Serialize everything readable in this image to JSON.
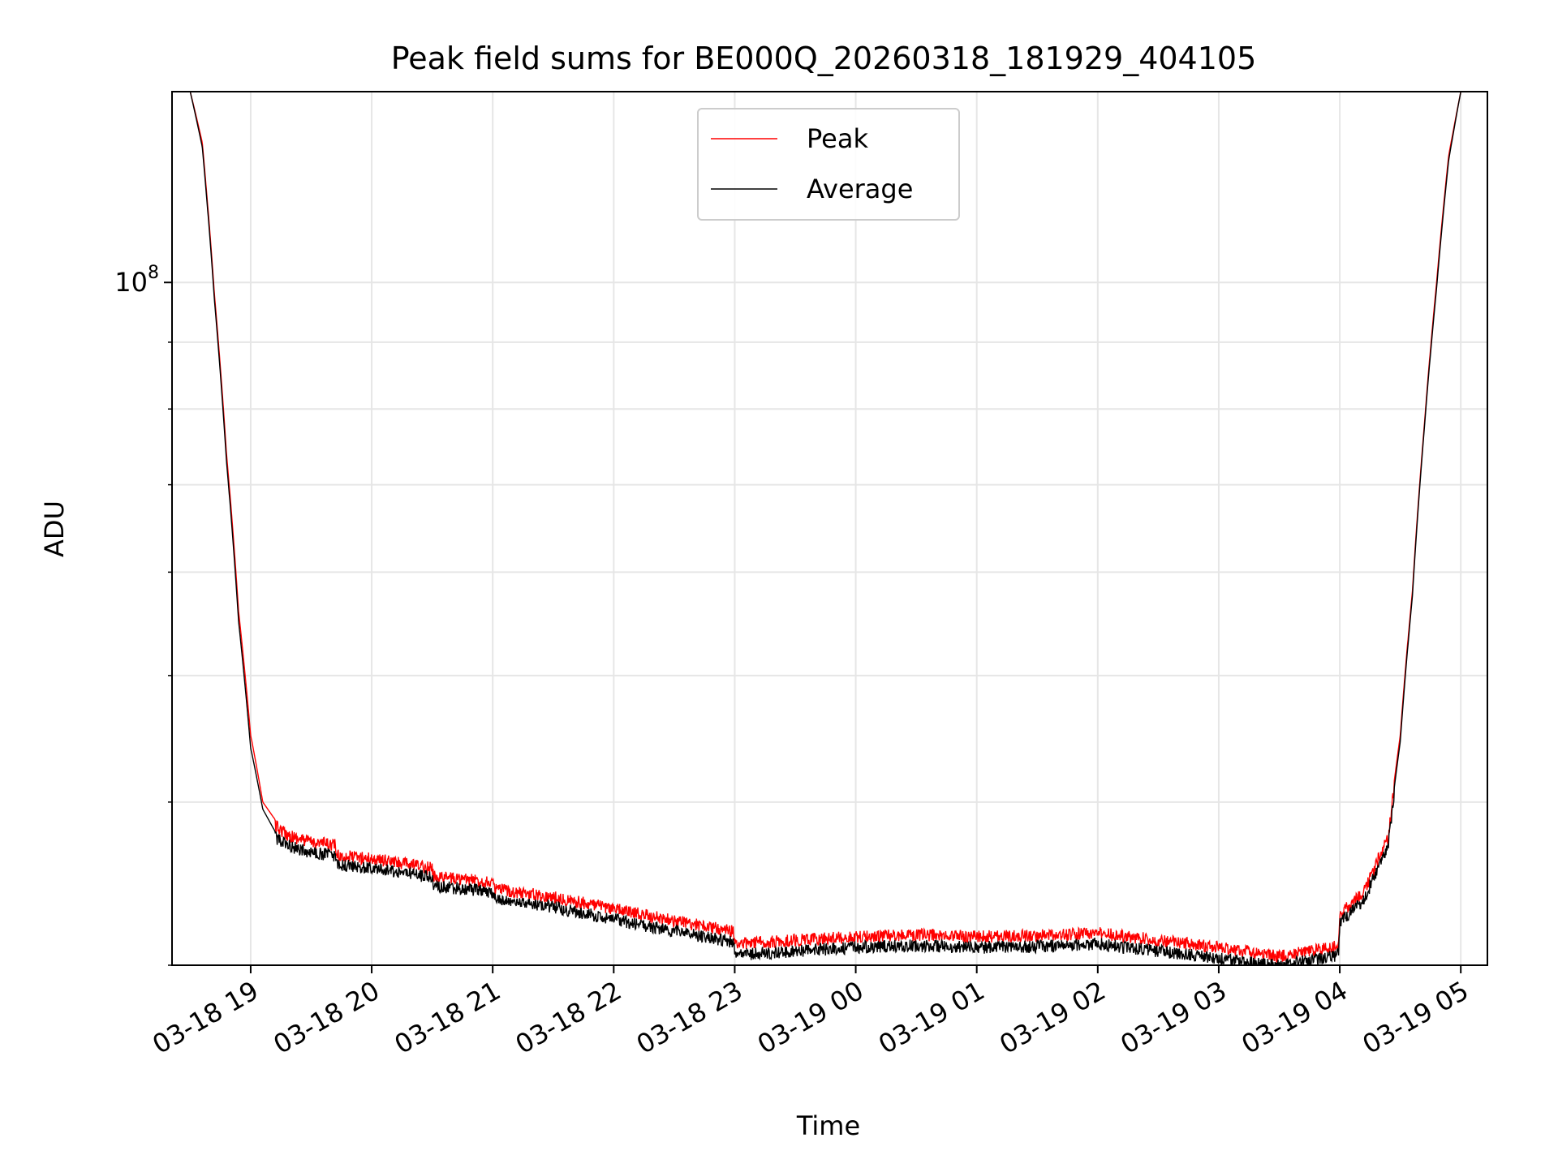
{
  "chart_data": {
    "type": "line",
    "title": "Peak field sums for BE000Q_20260318_181929_404105",
    "xlabel": "Time",
    "ylabel": "ADU",
    "yscale": "log",
    "ylim": [
      30000000,
      140000000
    ],
    "xlim_hours": [
      18.35,
      29.22
    ],
    "grid": true,
    "legend_position": "upper center",
    "y_major_ticks": [
      {
        "value": 100000000,
        "base": "10",
        "exp": "8"
      }
    ],
    "y_minor_ticks": [
      30000000,
      40000000,
      50000000,
      60000000,
      70000000,
      80000000,
      90000000
    ],
    "x_ticks": [
      {
        "hour": 19,
        "label": "03-18 19"
      },
      {
        "hour": 20,
        "label": "03-18 20"
      },
      {
        "hour": 21,
        "label": "03-18 21"
      },
      {
        "hour": 22,
        "label": "03-18 22"
      },
      {
        "hour": 23,
        "label": "03-18 23"
      },
      {
        "hour": 24,
        "label": "03-19 00"
      },
      {
        "hour": 25,
        "label": "03-19 01"
      },
      {
        "hour": 26,
        "label": "03-19 02"
      },
      {
        "hour": 27,
        "label": "03-19 03"
      },
      {
        "hour": 28,
        "label": "03-19 04"
      },
      {
        "hour": 29,
        "label": "03-19 05"
      }
    ],
    "series": [
      {
        "name": "Peak",
        "color": "#ff0000",
        "x_hours": [
          18.5,
          18.6,
          18.7,
          18.8,
          18.9,
          19.0,
          19.1,
          19.2,
          19.3,
          19.4,
          19.5,
          19.7,
          19.71,
          20.0,
          20.5,
          20.51,
          21.0,
          21.01,
          21.5,
          22.0,
          22.5,
          22.99,
          23.0,
          23.5,
          24.0,
          24.5,
          25.0,
          25.5,
          26.0,
          26.5,
          27.0,
          27.5,
          27.99,
          28.0,
          28.2,
          28.4,
          28.5,
          28.6,
          28.7,
          28.8,
          28.9,
          29.0
        ],
        "y": [
          140000000,
          128000000,
          98000000,
          74000000,
          56000000,
          45000000,
          40000000,
          38800000,
          38200000,
          37900000,
          37700000,
          37500000,
          36800000,
          36600000,
          36000000,
          35500000,
          35100000,
          34700000,
          34200000,
          33500000,
          32800000,
          32200000,
          31500000,
          31700000,
          31900000,
          32000000,
          31900000,
          31950000,
          32100000,
          31700000,
          31300000,
          30800000,
          31400000,
          33200000,
          34500000,
          38000000,
          45000000,
          58000000,
          78000000,
          100000000,
          125000000,
          140000000
        ]
      },
      {
        "name": "Average",
        "color": "#000000",
        "x_hours": [
          18.5,
          18.6,
          18.7,
          18.8,
          18.9,
          19.0,
          19.1,
          19.2,
          19.3,
          19.4,
          19.5,
          19.7,
          19.71,
          20.0,
          20.5,
          20.51,
          21.0,
          21.01,
          21.5,
          22.0,
          22.5,
          22.99,
          23.0,
          23.5,
          24.0,
          24.5,
          25.0,
          25.5,
          26.0,
          26.5,
          27.0,
          27.5,
          27.99,
          28.0,
          28.2,
          28.4,
          28.5,
          28.6,
          28.7,
          28.8,
          28.9,
          29.0
        ],
        "y": [
          140000000,
          127000000,
          97000000,
          73000000,
          55000000,
          44000000,
          39500000,
          38000000,
          37500000,
          37200000,
          37000000,
          36800000,
          36200000,
          36000000,
          35400000,
          34900000,
          34500000,
          34100000,
          33600000,
          32900000,
          32200000,
          31600000,
          30900000,
          31100000,
          31300000,
          31400000,
          31300000,
          31350000,
          31500000,
          31100000,
          30700000,
          30300000,
          30900000,
          32700000,
          34000000,
          37500000,
          44500000,
          57500000,
          77500000,
          99000000,
          124000000,
          140000000
        ]
      }
    ]
  }
}
